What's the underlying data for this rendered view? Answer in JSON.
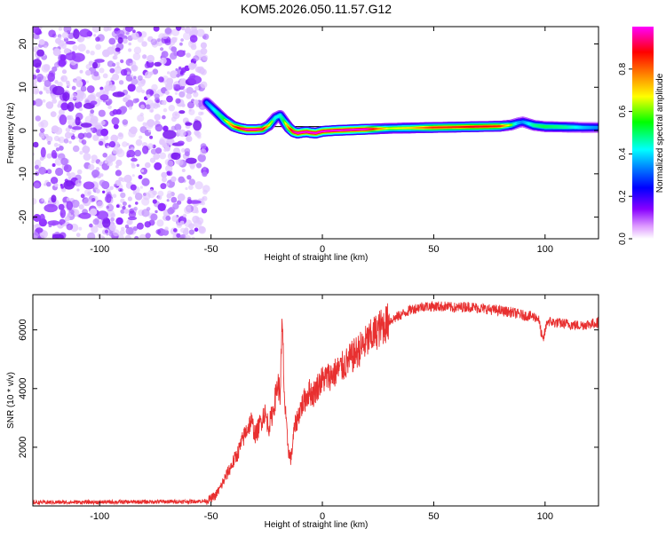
{
  "title": "KOM5.2026.050.11.57.G12",
  "chart_data": [
    {
      "type": "heatmap",
      "name": "spectrogram",
      "xlabel": "Height of straight line (km)",
      "ylabel": "Frequency (Hz)",
      "xlim": [
        -130,
        124
      ],
      "ylim": [
        -25,
        24
      ],
      "xticks": [
        -100,
        -50,
        0,
        50,
        100
      ],
      "yticks": [
        20,
        10,
        0,
        -10,
        -20
      ],
      "noise_region_x": [
        -130,
        -52
      ],
      "signal_track": {
        "x": [
          -52,
          -48,
          -44,
          -40,
          -37,
          -34,
          -30,
          -27,
          -24,
          -21,
          -19,
          -17,
          -15,
          -13,
          -11,
          -9,
          -7,
          -5,
          -3,
          0,
          5,
          10,
          15,
          20,
          25,
          30,
          40,
          50,
          60,
          70,
          80,
          85,
          88,
          90,
          92,
          95,
          100,
          110,
          118,
          124
        ],
        "y": [
          6.5,
          4.5,
          2.5,
          1.0,
          0.5,
          0.2,
          0.2,
          0.3,
          1.2,
          3.0,
          3.5,
          2.0,
          0.6,
          -0.3,
          -0.6,
          -0.4,
          -0.3,
          -0.5,
          -0.6,
          -0.2,
          0.0,
          0.1,
          0.2,
          0.3,
          0.4,
          0.5,
          0.6,
          0.7,
          0.8,
          0.9,
          1.0,
          1.3,
          1.8,
          2.0,
          1.7,
          1.2,
          0.9,
          0.8,
          0.7,
          0.7
        ],
        "amplitude": [
          0.4,
          0.5,
          0.6,
          0.8,
          0.9,
          1.0,
          1.0,
          0.95,
          0.7,
          0.5,
          0.5,
          0.6,
          0.8,
          0.95,
          1.0,
          1.0,
          1.0,
          1.0,
          1.0,
          1.0,
          1.0,
          1.0,
          1.0,
          1.0,
          0.8,
          0.65,
          0.7,
          0.85,
          0.85,
          0.9,
          0.85,
          0.6,
          0.45,
          0.4,
          0.45,
          0.55,
          0.6,
          0.55,
          0.45,
          0.4
        ]
      },
      "colorbar": {
        "label": "Normalized spectral amplitude",
        "range": [
          0,
          1
        ],
        "ticks": [
          "0.0",
          "0.2",
          "0.4",
          "0.6",
          "0.8"
        ],
        "colors": [
          "#ffffff",
          "#8800ff",
          "#0000ff",
          "#00ffff",
          "#00ff00",
          "#ffff00",
          "#ff8800",
          "#ff0000",
          "#ff00ff"
        ]
      }
    },
    {
      "type": "line",
      "name": "snr",
      "xlabel": "Height of straight line (km)",
      "ylabel": "SNR (10 * v/v)",
      "xlim": [
        -130,
        124
      ],
      "ylim": [
        0,
        7200
      ],
      "xticks": [
        -100,
        -50,
        0,
        50,
        100
      ],
      "yticks": [
        2000,
        4000,
        6000
      ],
      "color": "#e83030",
      "series": {
        "x": [
          -130,
          -100,
          -80,
          -60,
          -52,
          -48,
          -46,
          -44,
          -42,
          -40,
          -38,
          -36,
          -34,
          -32,
          -30,
          -28,
          -26,
          -24,
          -22,
          -20,
          -19,
          -18,
          -17,
          -16,
          -15,
          -14,
          -13,
          -12,
          -11,
          -10,
          -8,
          -6,
          -4,
          -2,
          0,
          5,
          10,
          15,
          20,
          25,
          30,
          35,
          40,
          45,
          50,
          55,
          60,
          65,
          70,
          75,
          80,
          85,
          90,
          95,
          97,
          99,
          101,
          104,
          110,
          115,
          120,
          124
        ],
        "y": [
          120,
          130,
          140,
          150,
          170,
          350,
          600,
          900,
          1200,
          1500,
          1800,
          2200,
          2600,
          2900,
          2400,
          2800,
          3200,
          2700,
          3300,
          4200,
          3800,
          6200,
          3600,
          2500,
          1800,
          1600,
          2400,
          2800,
          3000,
          3300,
          3600,
          3900,
          3800,
          4100,
          4300,
          4500,
          4800,
          5200,
          5600,
          6000,
          6300,
          6500,
          6700,
          6800,
          6800,
          6800,
          6750,
          6800,
          6750,
          6700,
          6650,
          6600,
          6500,
          6450,
          6400,
          5600,
          6300,
          6250,
          6200,
          6150,
          6200,
          6250
        ]
      }
    }
  ]
}
